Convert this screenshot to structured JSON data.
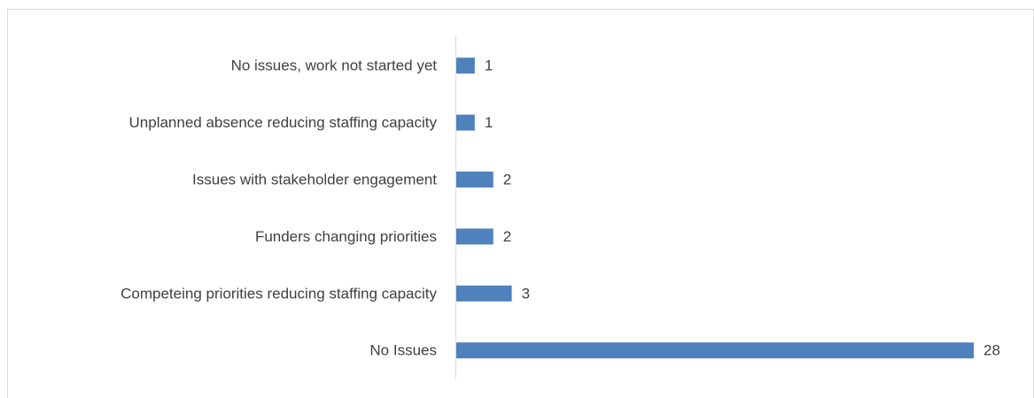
{
  "chart_data": {
    "type": "hbar",
    "categories": [
      "No issues, work not started yet",
      "Unplanned absence reducing staffing capacity",
      "Issues with stakeholder engagement",
      "Funders changing priorities",
      "Competeing priorities reducing staffing capacity",
      "No Issues"
    ],
    "values": [
      1,
      1,
      2,
      2,
      3,
      28
    ],
    "color": "#4f81bd"
  }
}
